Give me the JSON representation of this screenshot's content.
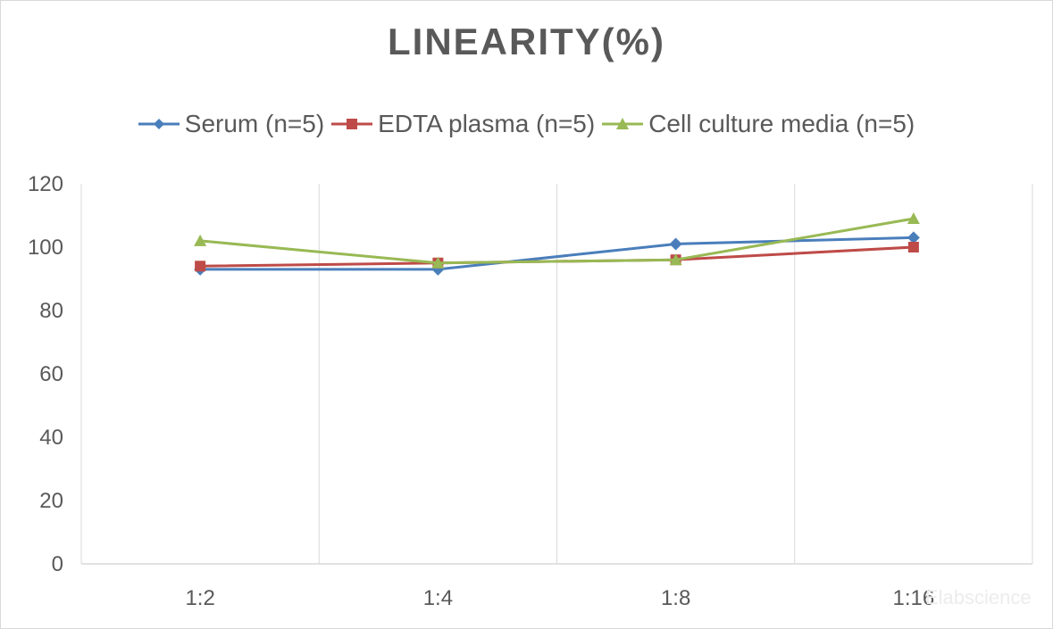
{
  "chart_data": {
    "type": "line",
    "title": "LINEARITY(%)",
    "xlabel": "",
    "ylabel": "",
    "categories": [
      "1:2",
      "1:4",
      "1:8",
      "1:16"
    ],
    "ylim": [
      0,
      120
    ],
    "yticks": [
      0,
      20,
      40,
      60,
      80,
      100,
      120
    ],
    "grid": "vertical",
    "legend_position": "top",
    "series": [
      {
        "name": "Serum (n=5)",
        "values": [
          93,
          93,
          101,
          103
        ],
        "color": "#4a7ebb",
        "marker": "diamond"
      },
      {
        "name": "EDTA plasma (n=5)",
        "values": [
          94,
          95,
          96,
          100
        ],
        "color": "#be4b48",
        "marker": "square"
      },
      {
        "name": "Cell culture media (n=5)",
        "values": [
          102,
          95,
          96,
          109
        ],
        "color": "#98b954",
        "marker": "triangle"
      }
    ]
  },
  "watermark": "Elabscience"
}
